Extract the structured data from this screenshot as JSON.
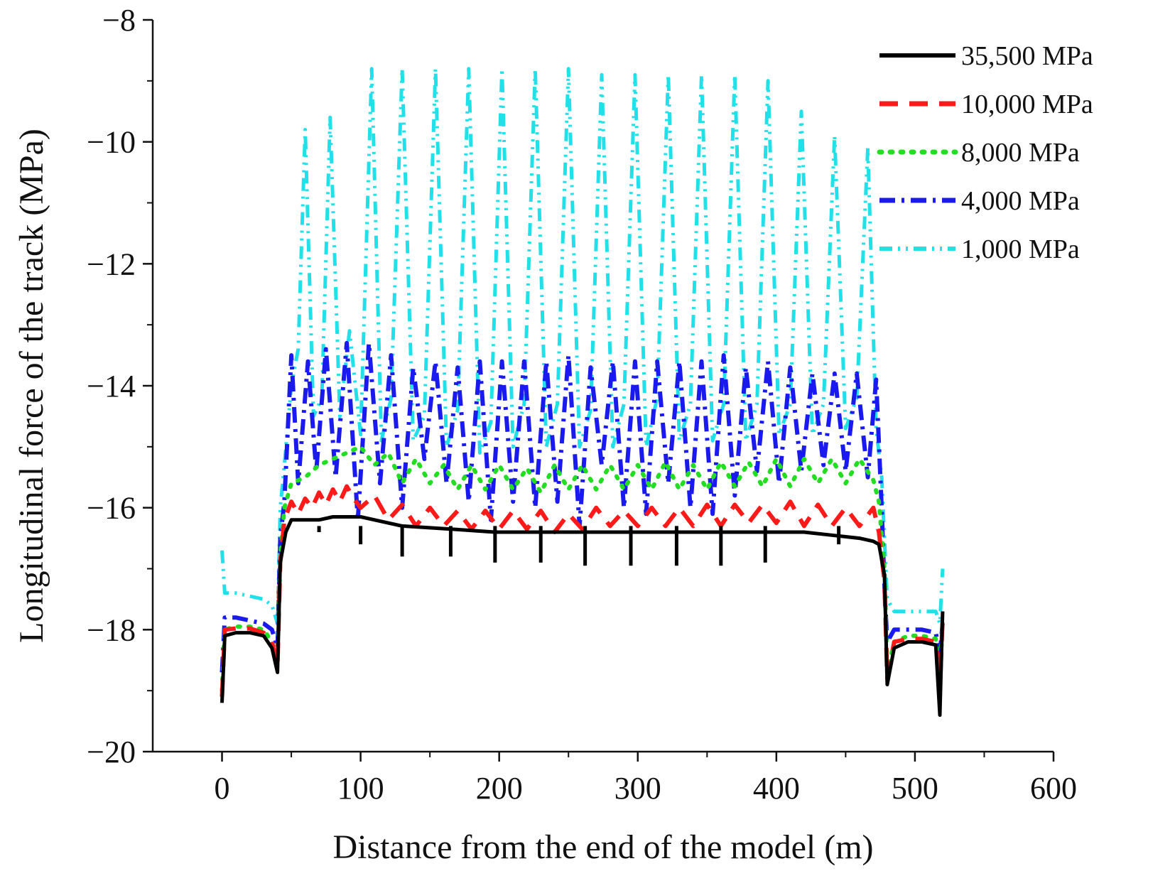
{
  "chart_data": {
    "type": "line",
    "title": "",
    "xlabel": "Distance from the end of the model (m)",
    "ylabel": "Longitudinal force of the track (MPa)",
    "xlim": [
      -50,
      600
    ],
    "ylim": [
      -20,
      -8
    ],
    "x_ticks": [
      0,
      100,
      200,
      300,
      400,
      500,
      600
    ],
    "x_tick_labels": [
      "0",
      "100",
      "200",
      "300",
      "400",
      "500",
      "600"
    ],
    "y_ticks": [
      -20,
      -18,
      -16,
      -14,
      -12,
      -10,
      -8
    ],
    "y_tick_labels": [
      "−20",
      "−18",
      "−16",
      "−14",
      "−12",
      "−10",
      "−8"
    ],
    "grid": false,
    "legend_position": "top-right",
    "colors": {
      "s35500": "#000000",
      "s10000": "#ff1a1a",
      "s8000": "#22dd22",
      "s4000": "#1a1aee",
      "s1000": "#22e0e8"
    },
    "series": [
      {
        "name": "35,500 MPa",
        "style": "solid",
        "x": [
          0,
          2,
          10,
          20,
          30,
          36,
          40,
          42,
          46,
          50,
          60,
          70,
          80,
          90,
          100,
          130,
          165,
          197,
          230,
          262,
          295,
          328,
          360,
          392,
          420,
          440,
          460,
          470,
          474,
          478,
          480,
          485,
          495,
          505,
          515,
          518,
          520
        ],
        "y": [
          -19.2,
          -18.1,
          -18.05,
          -18.05,
          -18.1,
          -18.3,
          -18.7,
          -16.9,
          -16.4,
          -16.2,
          -16.2,
          -16.2,
          -16.15,
          -16.15,
          -16.15,
          -16.3,
          -16.35,
          -16.4,
          -16.4,
          -16.4,
          -16.4,
          -16.4,
          -16.4,
          -16.4,
          -16.4,
          -16.45,
          -16.5,
          -16.55,
          -16.6,
          -17.1,
          -18.9,
          -18.3,
          -18.2,
          -18.2,
          -18.25,
          -19.4,
          -17.7
        ],
        "dips": {
          "x": [
            70,
            100,
            130,
            165,
            197,
            230,
            262,
            295,
            328,
            360,
            392,
            445
          ],
          "y": [
            -16.4,
            -16.6,
            -16.8,
            -16.8,
            -16.9,
            -16.9,
            -16.95,
            -16.95,
            -16.95,
            -16.95,
            -16.9,
            -16.6
          ]
        }
      },
      {
        "name": "10,000 MPa",
        "style": "dashed",
        "x": [
          0,
          2,
          10,
          20,
          30,
          36,
          40,
          42,
          45,
          50,
          55,
          60,
          65,
          70,
          75,
          80,
          85,
          90,
          95,
          100,
          110,
          120,
          130,
          140,
          150,
          160,
          170,
          180,
          190,
          200,
          210,
          220,
          230,
          240,
          250,
          260,
          270,
          280,
          290,
          300,
          310,
          320,
          330,
          340,
          350,
          360,
          370,
          380,
          390,
          400,
          410,
          420,
          430,
          440,
          450,
          460,
          470,
          474,
          478,
          480,
          485,
          495,
          505,
          515,
          518,
          520
        ],
        "y": [
          -19.1,
          -18.0,
          -17.98,
          -17.98,
          -18.05,
          -18.2,
          -18.6,
          -16.9,
          -16.2,
          -15.9,
          -16.1,
          -15.85,
          -16.0,
          -15.75,
          -15.95,
          -15.7,
          -15.9,
          -15.65,
          -15.85,
          -16.0,
          -15.8,
          -16.2,
          -15.95,
          -16.3,
          -16.0,
          -16.3,
          -16.05,
          -16.35,
          -16.05,
          -16.35,
          -16.05,
          -16.35,
          -16.05,
          -16.4,
          -16.1,
          -16.35,
          -16.0,
          -16.3,
          -16.05,
          -16.3,
          -16.0,
          -16.3,
          -16.0,
          -16.3,
          -15.95,
          -16.3,
          -15.95,
          -16.25,
          -15.95,
          -16.25,
          -15.9,
          -16.3,
          -15.95,
          -16.3,
          -16.0,
          -16.3,
          -16.0,
          -16.4,
          -17.2,
          -18.8,
          -18.2,
          -18.15,
          -18.15,
          -18.2,
          -19.0,
          -17.8
        ]
      },
      {
        "name": "8,000 MPa",
        "style": "dotted",
        "x": [
          0,
          2,
          10,
          20,
          30,
          36,
          40,
          42,
          45,
          50,
          60,
          70,
          80,
          90,
          100,
          110,
          120,
          130,
          140,
          150,
          160,
          170,
          180,
          190,
          200,
          210,
          220,
          230,
          240,
          250,
          260,
          270,
          280,
          290,
          300,
          310,
          320,
          330,
          340,
          350,
          360,
          370,
          380,
          390,
          400,
          410,
          420,
          430,
          440,
          450,
          460,
          470,
          474,
          478,
          480,
          485,
          495,
          505,
          515,
          518,
          520
        ],
        "y": [
          -19.0,
          -18.0,
          -17.95,
          -17.95,
          -18.0,
          -18.2,
          -18.5,
          -16.8,
          -16.0,
          -15.6,
          -15.5,
          -15.3,
          -15.2,
          -15.1,
          -15.0,
          -15.3,
          -15.1,
          -15.6,
          -15.2,
          -15.6,
          -15.3,
          -15.7,
          -15.3,
          -15.7,
          -15.3,
          -15.7,
          -15.35,
          -15.75,
          -15.3,
          -15.7,
          -15.3,
          -15.7,
          -15.3,
          -15.7,
          -15.3,
          -15.7,
          -15.25,
          -15.7,
          -15.3,
          -15.7,
          -15.25,
          -15.65,
          -15.25,
          -15.65,
          -15.2,
          -15.65,
          -15.2,
          -15.6,
          -15.2,
          -15.6,
          -15.2,
          -15.55,
          -15.9,
          -17.0,
          -18.7,
          -18.2,
          -18.1,
          -18.1,
          -18.15,
          -18.9,
          -17.8
        ]
      },
      {
        "name": "4,000 MPa",
        "style": "dash-dot",
        "x": [
          0,
          2,
          10,
          20,
          30,
          36,
          40,
          42,
          45,
          50,
          55,
          62,
          68,
          75,
          82,
          90,
          98,
          106,
          114,
          122,
          130,
          138,
          146,
          154,
          162,
          170,
          178,
          186,
          194,
          202,
          210,
          218,
          226,
          234,
          242,
          250,
          258,
          266,
          274,
          282,
          290,
          298,
          306,
          314,
          322,
          330,
          338,
          346,
          354,
          362,
          370,
          378,
          386,
          394,
          402,
          410,
          418,
          426,
          434,
          442,
          450,
          458,
          466,
          472,
          476,
          478,
          480,
          485,
          495,
          505,
          515,
          518,
          520
        ],
        "y": [
          -18.7,
          -17.8,
          -17.8,
          -17.85,
          -17.9,
          -18.0,
          -18.3,
          -16.5,
          -15.9,
          -13.5,
          -15.6,
          -13.6,
          -15.4,
          -13.4,
          -15.5,
          -13.3,
          -16.2,
          -13.3,
          -15.6,
          -13.5,
          -16.0,
          -13.7,
          -15.2,
          -13.6,
          -15.6,
          -13.7,
          -15.9,
          -13.6,
          -16.2,
          -13.6,
          -15.9,
          -13.6,
          -16.0,
          -13.6,
          -15.9,
          -13.5,
          -16.3,
          -13.7,
          -15.3,
          -13.6,
          -16.0,
          -13.6,
          -16.1,
          -13.6,
          -15.6,
          -13.6,
          -16.0,
          -13.6,
          -16.1,
          -13.5,
          -15.8,
          -13.7,
          -15.4,
          -13.6,
          -15.6,
          -13.7,
          -15.4,
          -13.8,
          -15.3,
          -13.8,
          -15.4,
          -13.8,
          -15.5,
          -13.9,
          -16.0,
          -17.3,
          -18.2,
          -18.0,
          -18.0,
          -18.0,
          -18.05,
          -18.4,
          -17.9
        ]
      },
      {
        "name": "1,000 MPa",
        "style": "dash-dot-dot",
        "x": [
          0,
          2,
          10,
          20,
          30,
          36,
          40,
          42,
          45,
          50,
          55,
          60,
          66,
          72,
          78,
          85,
          92,
          100,
          108,
          115,
          122,
          130,
          138,
          146,
          154,
          162,
          170,
          178,
          186,
          194,
          202,
          210,
          218,
          226,
          234,
          242,
          250,
          258,
          266,
          274,
          282,
          290,
          298,
          306,
          314,
          322,
          330,
          338,
          346,
          354,
          362,
          370,
          378,
          386,
          394,
          402,
          410,
          418,
          426,
          434,
          442,
          450,
          458,
          466,
          472,
          476,
          480,
          485,
          495,
          505,
          515,
          518,
          520
        ],
        "y": [
          -16.7,
          -17.4,
          -17.4,
          -17.45,
          -17.5,
          -17.6,
          -17.9,
          -16.0,
          -15.3,
          -14.0,
          -13.4,
          -9.8,
          -14.5,
          -14.2,
          -9.6,
          -14.5,
          -13.1,
          -14.8,
          -8.8,
          -14.9,
          -14.2,
          -8.8,
          -14.9,
          -14.5,
          -8.8,
          -15.0,
          -14.4,
          -8.8,
          -15.1,
          -14.6,
          -8.8,
          -15.0,
          -14.3,
          -8.8,
          -15.0,
          -14.3,
          -8.8,
          -15.0,
          -14.4,
          -8.9,
          -15.0,
          -14.3,
          -8.9,
          -15.0,
          -14.2,
          -8.9,
          -14.9,
          -14.3,
          -8.9,
          -14.9,
          -14.3,
          -8.9,
          -14.9,
          -14.3,
          -9.0,
          -14.8,
          -14.3,
          -9.5,
          -14.8,
          -14.3,
          -9.9,
          -14.7,
          -14.2,
          -10.1,
          -14.7,
          -15.5,
          -17.5,
          -17.7,
          -17.7,
          -17.7,
          -17.7,
          -17.9,
          -17.0
        ]
      }
    ]
  }
}
